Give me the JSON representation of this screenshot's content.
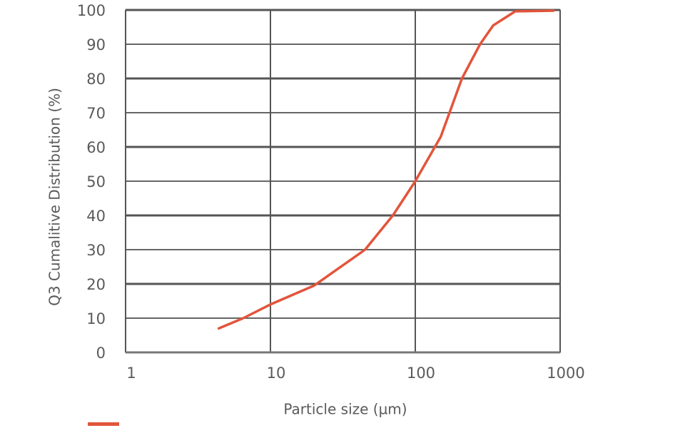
{
  "chart_data": {
    "type": "line",
    "x_label": "Particle size (µm)",
    "y_label": "Q3 Cumalitive Distribution (%)",
    "x": [
      4.4,
      6.5,
      10,
      20,
      45,
      70,
      100,
      150,
      210,
      280,
      345,
      490,
      900
    ],
    "values": [
      7,
      10,
      14,
      19.5,
      30,
      40,
      50,
      63,
      80,
      90,
      95.5,
      99.6,
      99.8
    ],
    "color": "#e2553b",
    "xscale": "log",
    "xlim": [
      1,
      1000
    ],
    "xticks": [
      1,
      10,
      100,
      1000
    ],
    "ylim": [
      0,
      100
    ],
    "yticks": [
      0,
      10,
      20,
      30,
      40,
      50,
      60,
      70,
      80,
      90,
      100
    ],
    "grid": true
  }
}
